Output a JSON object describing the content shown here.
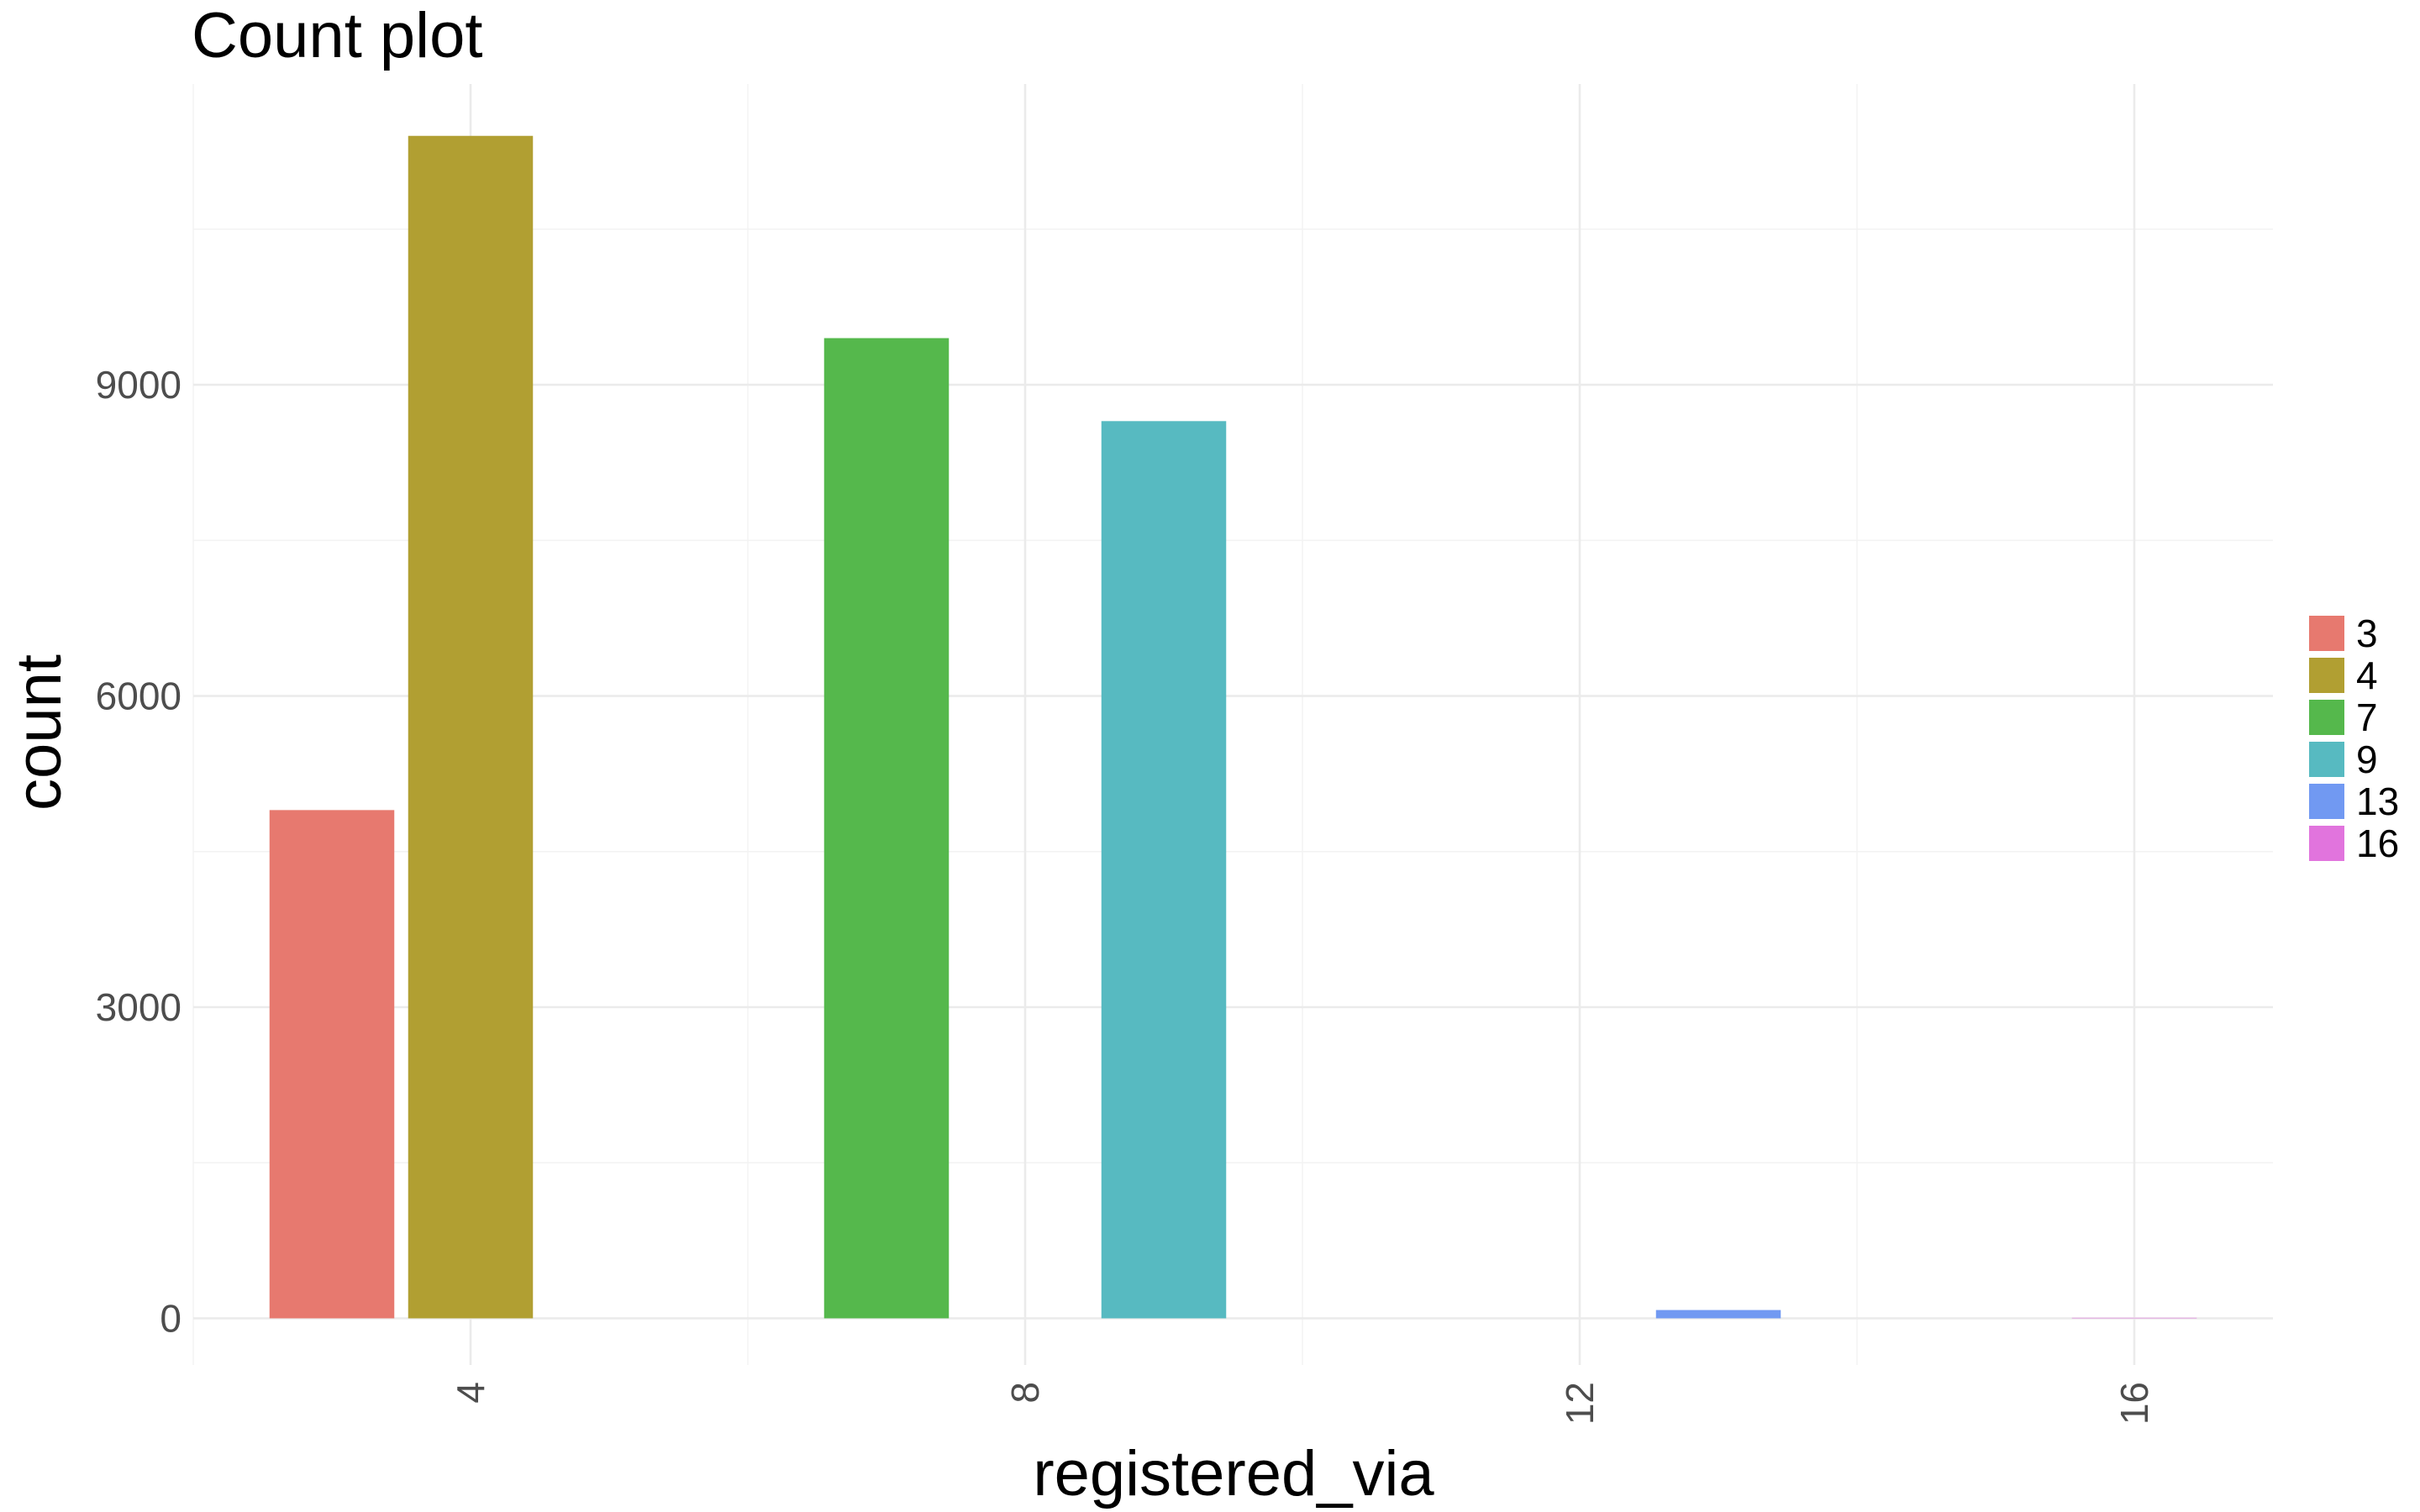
{
  "chart_data": {
    "type": "bar",
    "title": "Count plot",
    "xlabel": "registered_via",
    "ylabel": "count",
    "xlim": [
      2,
      17
    ],
    "ylim": [
      -450,
      11900
    ],
    "x_ticks": [
      4,
      8,
      12,
      16
    ],
    "y_ticks": [
      0,
      3000,
      6000,
      9000
    ],
    "x_tick_rotation": -90,
    "grid": true,
    "legend_position": "right",
    "bar_width": 0.9,
    "legend_title": "",
    "series": [
      {
        "name": "3",
        "x": 3,
        "value": 4900,
        "color": "#E7796F"
      },
      {
        "name": "4",
        "x": 4,
        "value": 11400,
        "color": "#B19F32"
      },
      {
        "name": "7",
        "x": 7,
        "value": 9450,
        "color": "#55B84C"
      },
      {
        "name": "9",
        "x": 9,
        "value": 8650,
        "color": "#57BAC1"
      },
      {
        "name": "13",
        "x": 13,
        "value": 80,
        "color": "#7199F2"
      },
      {
        "name": "16",
        "x": 16,
        "value": 5,
        "color": "#E174DD"
      }
    ]
  }
}
